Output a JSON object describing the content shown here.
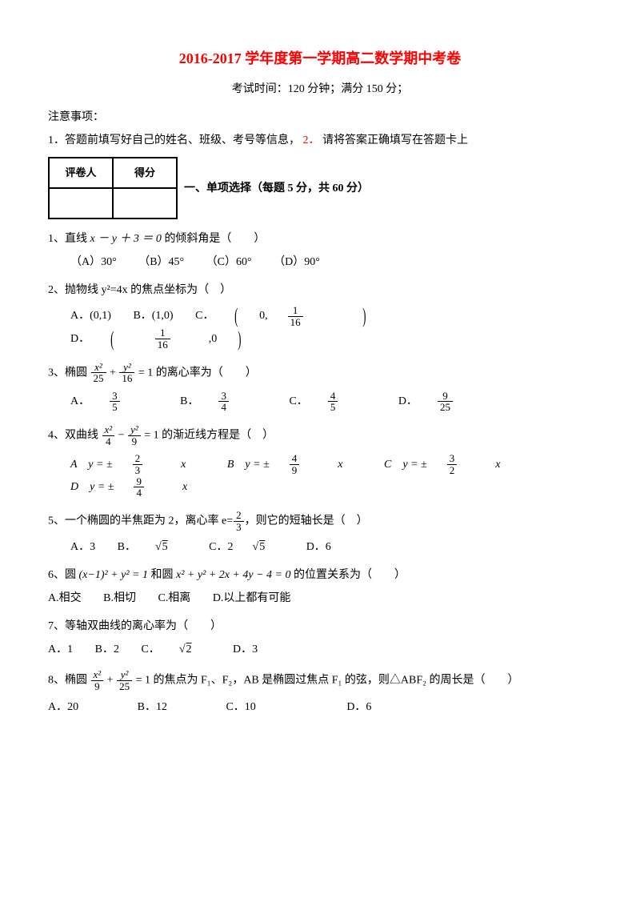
{
  "title": "2016-2017 学年度第一学期高二数学期中考卷",
  "subtitle": "考试时间：120 分钟；满分 150 分；",
  "notice_head": "注意事项：",
  "notice_1": "1．答题前填写好自己的姓名、班级、考号等信息，",
  "notice_2": "2．",
  "notice_2b": "请将答案正确填写在答题卡上",
  "grader": {
    "h1": "评卷人",
    "h2": "得分"
  },
  "section1": "一、单项选择（每题 5 分，共 60 分）",
  "q1": {
    "stem_a": "1、直线 ",
    "eq": "x － y ＋ 3 ＝ 0",
    "stem_b": " 的倾斜角是（　　）",
    "A": "（A）30°",
    "B": "（B）45°",
    "C": "（C）60°",
    "D": "（D）90°"
  },
  "q2": {
    "stem": "2、抛物线 y²=4x 的焦点坐标为（　）",
    "A": "A．(0,1)",
    "B": "B．(1,0)",
    "C_pre": "C．",
    "C_num": "1",
    "C_den": "16",
    "C_wrap_a": "0,",
    "C_wrap_b": "",
    "D_pre": "D．",
    "D_num": "1",
    "D_den": "16",
    "D_wrap_a": "",
    "D_wrap_b": ",0"
  },
  "q3": {
    "stem_a": "3、椭圆 ",
    "x_num": "x²",
    "x_den": "25",
    "plus": " + ",
    "y_num": "y²",
    "y_den": "16",
    "eq": " = 1",
    "stem_b": " 的离心率为（　　）",
    "A_pre": "A．",
    "A_num": "3",
    "A_den": "5",
    "B_pre": "B．",
    "B_num": "3",
    "B_den": "4",
    "C_pre": "C．",
    "C_num": "4",
    "C_den": "5",
    "D_pre": "D．",
    "D_num": "9",
    "D_den": "25"
  },
  "q4": {
    "stem_a": "4、双曲线 ",
    "x_num": "x²",
    "x_den": "4",
    "minus": " − ",
    "y_num": "y²",
    "y_den": "9",
    "eq": " = 1",
    "stem_b": " 的渐近线方程是（　）",
    "A_pre": "A　y = ±",
    "A_num": "2",
    "A_den": "3",
    "A_suf": "x",
    "B_pre": "B　y = ±",
    "B_num": "4",
    "B_den": "9",
    "B_suf": "x",
    "C_pre": "C　y = ±",
    "C_num": "3",
    "C_den": "2",
    "C_suf": "x",
    "D_pre": "D　y = ±",
    "D_num": "9",
    "D_den": "4",
    "D_suf": "x"
  },
  "q5": {
    "stem_a": "5、一个椭圆的半焦距为 2，离心率 e=",
    "e_num": "2",
    "e_den": "3",
    "stem_b": "，则它的短轴长是（　）",
    "A": "A．3",
    "B_pre": "B．",
    "B_sqrt": "5",
    "C_pre": "C．2",
    "C_sqrt": "5",
    "D": "D．6"
  },
  "q6": {
    "stem_a": "6、圆 ",
    "eq1": "(x−1)² + y² = 1",
    "mid": " 和圆 ",
    "eq2": "x² + y² + 2x + 4y − 4 = 0",
    "stem_b": " 的位置关系为（　　）",
    "A": "A.相交",
    "B": "B.相切",
    "C": "C.相离",
    "D": "D.以上都有可能"
  },
  "q7": {
    "stem": "7、等轴双曲线的离心率为（　　）",
    "A": "A．1",
    "B": "B．2",
    "C_pre": "C．",
    "C_sqrt": "2",
    "D": "D．3"
  },
  "q8": {
    "stem_a": "8、椭圆 ",
    "x_num": "x²",
    "x_den": "9",
    "plus": " + ",
    "y_num": "y²",
    "y_den": "25",
    "eq": " = 1",
    "stem_b": " 的焦点为 F₁、F₂，AB 是椭圆过焦点 F₁ 的弦，则△ABF₂ 的周长是（　　）",
    "A": "A．20",
    "B": "B．12",
    "C": "C．10",
    "D": "D．6"
  }
}
